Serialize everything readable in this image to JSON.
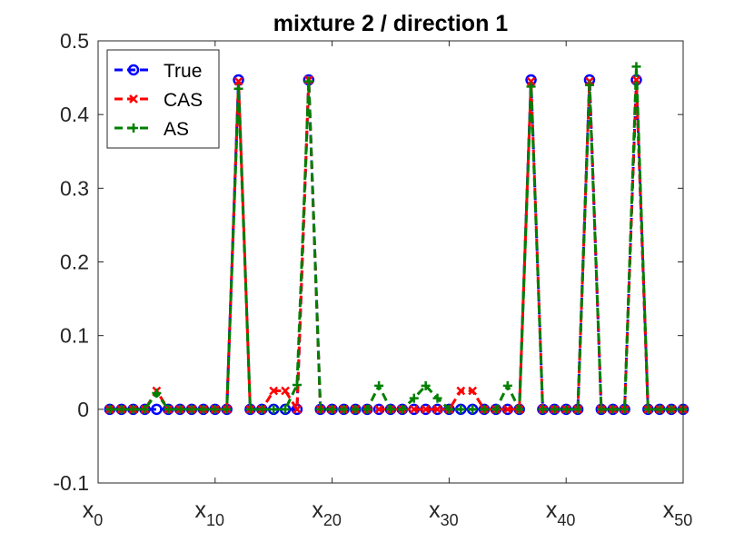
{
  "chart_data": {
    "type": "line",
    "title": "mixture 2 / direction 1",
    "xlabel": "",
    "ylabel": "",
    "xlim": [
      0,
      50
    ],
    "ylim": [
      -0.1,
      0.5
    ],
    "yticks": [
      "-0.1",
      "0",
      "0.1",
      "0.2",
      "0.3",
      "0.4",
      "0.5"
    ],
    "xticks": [
      {
        "value": 0,
        "main": "x",
        "sub": "0"
      },
      {
        "value": 10,
        "main": "x",
        "sub": "10"
      },
      {
        "value": 20,
        "main": "x",
        "sub": "20"
      },
      {
        "value": 30,
        "main": "x",
        "sub": "30"
      },
      {
        "value": 40,
        "main": "x",
        "sub": "40"
      },
      {
        "value": 50,
        "main": "x",
        "sub": "50"
      }
    ],
    "grid": false,
    "legend_position": "top-left",
    "x": [
      1,
      2,
      3,
      4,
      5,
      6,
      7,
      8,
      9,
      10,
      11,
      12,
      13,
      14,
      15,
      16,
      17,
      18,
      19,
      20,
      21,
      22,
      23,
      24,
      25,
      26,
      27,
      28,
      29,
      30,
      31,
      32,
      33,
      34,
      35,
      36,
      37,
      38,
      39,
      40,
      41,
      42,
      43,
      44,
      45,
      46,
      47,
      48,
      49,
      50
    ],
    "series": [
      {
        "name": "True",
        "color": "#0000ff",
        "marker": "circle",
        "values": [
          0,
          0,
          0,
          0,
          0,
          0,
          0,
          0,
          0,
          0,
          0,
          0.447,
          0,
          0,
          0,
          0,
          0,
          0.447,
          0,
          0,
          0,
          0,
          0,
          0,
          0,
          0,
          0,
          0,
          0,
          0,
          0,
          0,
          0,
          0,
          0,
          0,
          0.447,
          0,
          0,
          0,
          0,
          0.447,
          0,
          0,
          0,
          0.447,
          0,
          0,
          0,
          0
        ]
      },
      {
        "name": "CAS",
        "color": "#ff0000",
        "marker": "x",
        "values": [
          0,
          0,
          0,
          0,
          0.025,
          0,
          0,
          0,
          0,
          0,
          0,
          0.445,
          0,
          0,
          0.025,
          0.025,
          0,
          0.447,
          0,
          0,
          0,
          0,
          0,
          0,
          0,
          0,
          0,
          0,
          0,
          0,
          0.025,
          0.025,
          0,
          0,
          0,
          0,
          0.445,
          0,
          0,
          0,
          0,
          0.445,
          0,
          0,
          0,
          0.447,
          0,
          0,
          0,
          0
        ]
      },
      {
        "name": "AS",
        "color": "#008000",
        "marker": "plus",
        "values": [
          0,
          0,
          0,
          0,
          0.022,
          0,
          0,
          0,
          0,
          0,
          0,
          0.435,
          0,
          0,
          0,
          0,
          0.033,
          0.445,
          0,
          0,
          0,
          0,
          0,
          0.032,
          0,
          0,
          0.015,
          0.032,
          0.015,
          0,
          0,
          0,
          0,
          0,
          0.032,
          0,
          0.438,
          0,
          0,
          0,
          0,
          0.44,
          0,
          0,
          0,
          0.465,
          0,
          0,
          0,
          0
        ]
      }
    ]
  }
}
